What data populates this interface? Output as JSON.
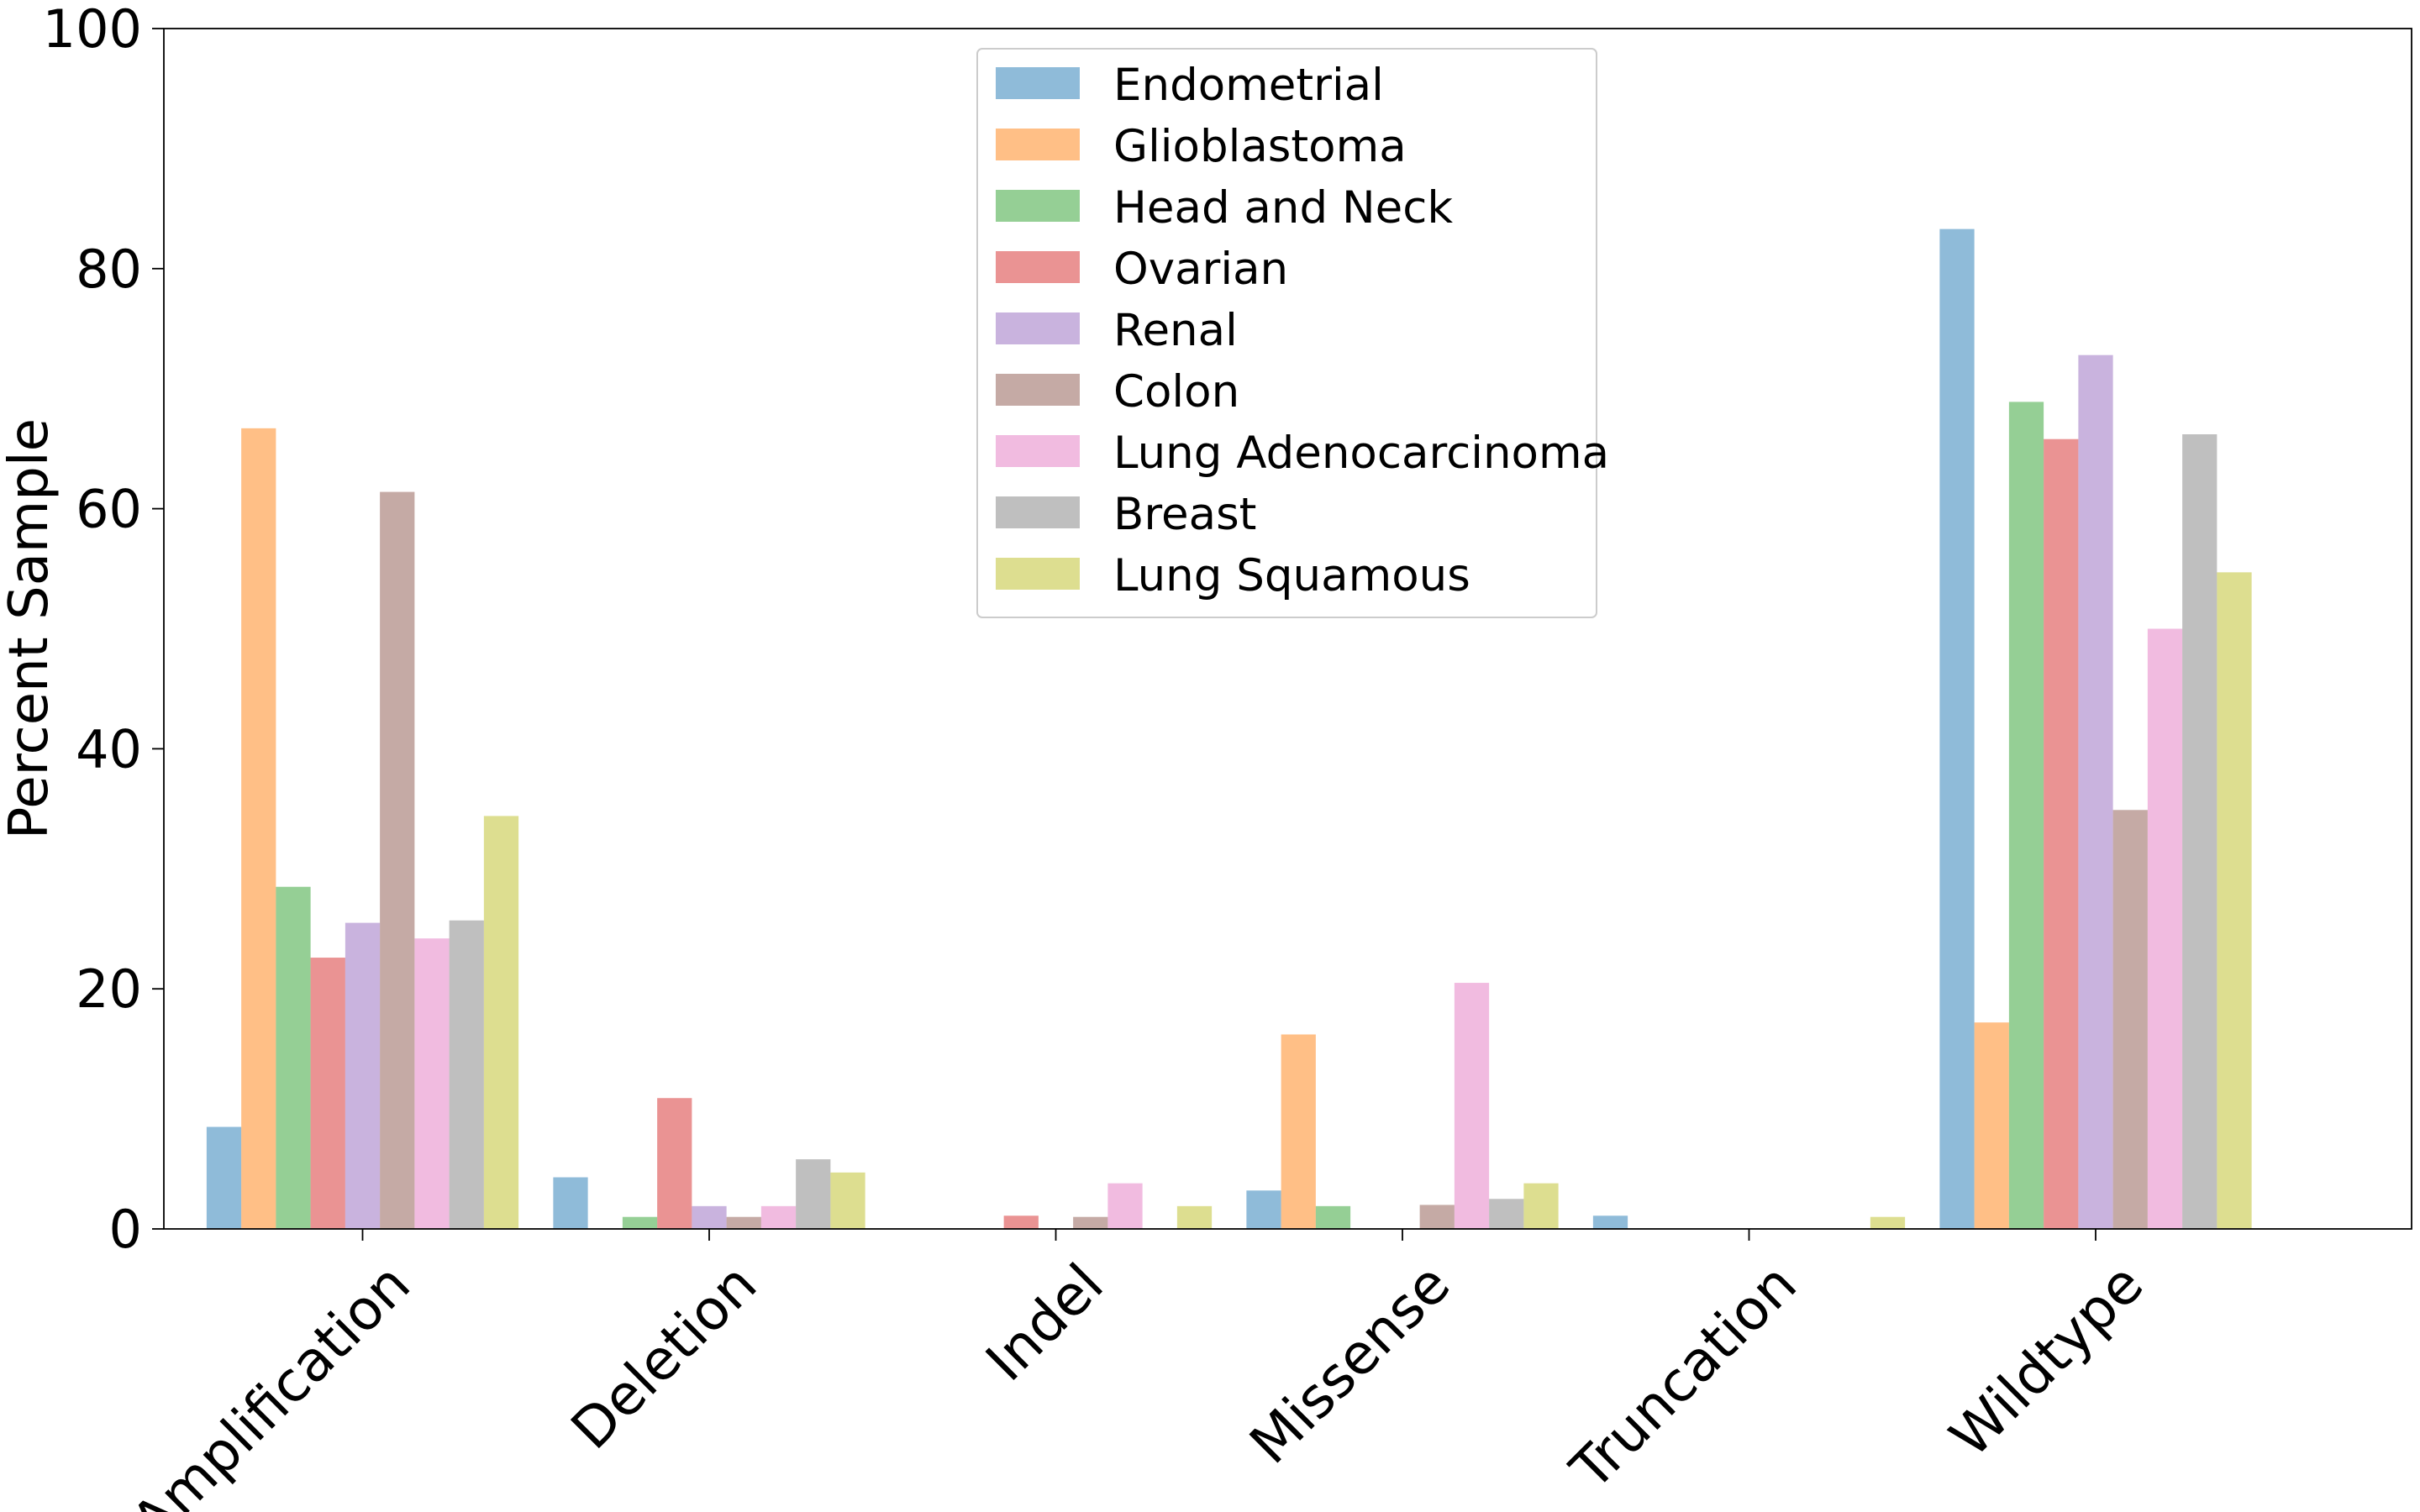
{
  "chart_data": {
    "type": "bar",
    "categories": [
      "Amplification",
      "Deletion",
      "Indel",
      "Missense",
      "Truncation",
      "Wildtype"
    ],
    "ylabel": "Percent Sample",
    "xlabel": "",
    "ylim": [
      0,
      100
    ],
    "yticks": [
      0,
      20,
      40,
      60,
      80,
      100
    ],
    "grid": false,
    "legend_position": "top-center",
    "bar_opacity": 0.5,
    "series": [
      {
        "name": "Endometrial",
        "color": "#1f77b4",
        "values": [
          8.5,
          4.3,
          0,
          3.2,
          1.1,
          83.3
        ]
      },
      {
        "name": "Glioblastoma",
        "color": "#ff7f0e",
        "values": [
          66.7,
          0,
          0,
          16.2,
          0,
          17.2
        ]
      },
      {
        "name": "Head and Neck",
        "color": "#2ca02c",
        "values": [
          28.5,
          1.0,
          0,
          1.9,
          0,
          68.9
        ]
      },
      {
        "name": "Ovarian",
        "color": "#d62728",
        "values": [
          22.6,
          10.9,
          1.1,
          0,
          0,
          65.8
        ]
      },
      {
        "name": "Renal",
        "color": "#9467bd",
        "values": [
          25.5,
          1.9,
          0,
          0,
          0,
          72.8
        ]
      },
      {
        "name": "Colon",
        "color": "#8c564b",
        "values": [
          61.4,
          1.0,
          1.0,
          2.0,
          0,
          34.9
        ]
      },
      {
        "name": "Lung Adenocarcinoma",
        "color": "#e377c2",
        "values": [
          24.2,
          1.9,
          3.8,
          20.5,
          0,
          50.0
        ]
      },
      {
        "name": "Breast",
        "color": "#7f7f7f",
        "values": [
          25.7,
          5.8,
          0,
          2.5,
          0,
          66.2
        ]
      },
      {
        "name": "Lung Squamous",
        "color": "#bcbd22",
        "values": [
          34.4,
          4.7,
          1.9,
          3.8,
          1.0,
          54.7
        ]
      }
    ]
  }
}
